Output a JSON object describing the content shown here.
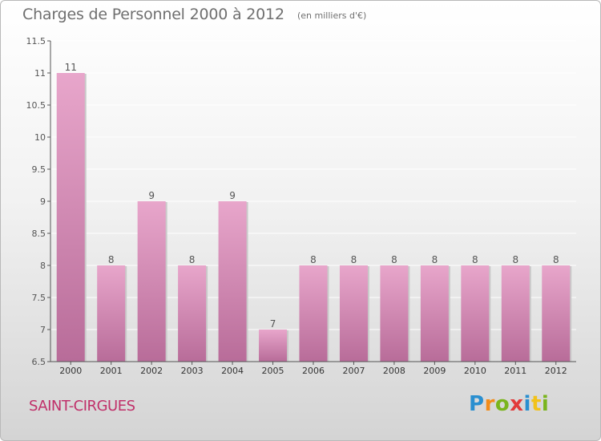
{
  "header": {
    "title": "Charges de Personnel 2000 à 2012",
    "subtitle": "(en milliers d'€)"
  },
  "footer": {
    "place": "SAINT-CIRGUES",
    "brand_letters": [
      "P",
      "r",
      "o",
      "x",
      "i",
      "t",
      "i"
    ],
    "brand_colors": [
      "#2a8fd0",
      "#f28c1a",
      "#7ab51d",
      "#e23b3b",
      "#2a8fd0",
      "#f2c21a",
      "#7ab51d"
    ]
  },
  "colors": {
    "bar": "#d98fba",
    "bar_light": "#e8a6cb",
    "bar_dark": "#b86c99",
    "axis": "#555555",
    "grid": "#ffffff",
    "title": "#6f6f6f",
    "place": "#c0306a"
  },
  "chart_data": {
    "type": "bar",
    "categories": [
      "2000",
      "2001",
      "2002",
      "2003",
      "2004",
      "2005",
      "2006",
      "2007",
      "2008",
      "2009",
      "2010",
      "2011",
      "2012"
    ],
    "values": [
      11,
      8,
      9,
      8,
      9,
      7,
      8,
      8,
      8,
      8,
      8,
      8,
      8
    ],
    "data_labels": [
      "11",
      "8",
      "9",
      "8",
      "9",
      "7",
      "8",
      "8",
      "8",
      "8",
      "8",
      "8",
      "8"
    ],
    "ylim": [
      6.5,
      11.5
    ],
    "yticks": [
      6.5,
      7,
      7.5,
      8,
      8.5,
      9,
      9.5,
      10,
      10.5,
      11,
      11.5
    ],
    "ytick_labels": [
      "6.5",
      "7",
      "7.5",
      "8",
      "8.5",
      "9",
      "9.5",
      "10",
      "10.5",
      "11",
      "11.5"
    ],
    "title": "Charges de Personnel 2000 à 2012",
    "xlabel": "",
    "ylabel": "",
    "grid": true
  }
}
